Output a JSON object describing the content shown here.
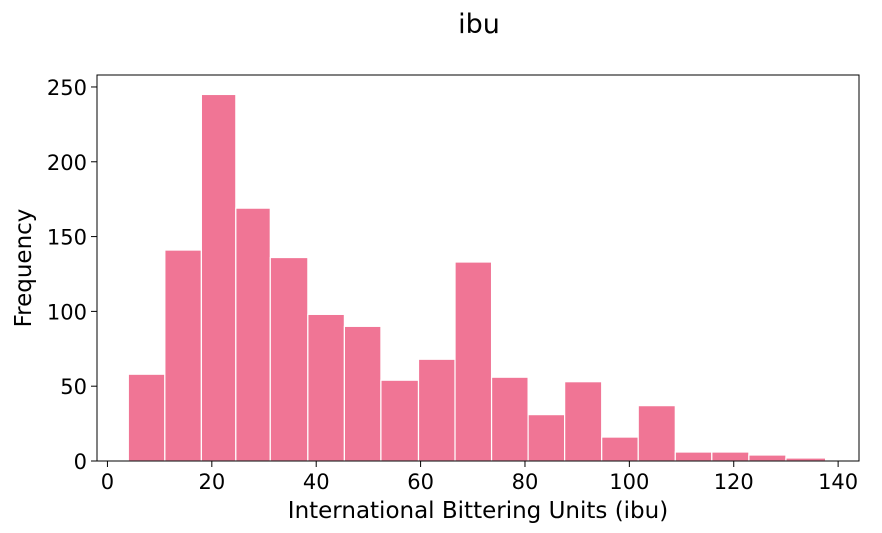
{
  "chart_data": {
    "type": "bar",
    "title": "ibu",
    "xlabel": "International Bittering Units (ibu)",
    "ylabel": "Frequency",
    "bar_color": "#f07595",
    "bin_edges": [
      4,
      11.0,
      18.0,
      24.6,
      31.2,
      38.4,
      45.4,
      52.4,
      59.6,
      66.6,
      73.6,
      80.6,
      87.6,
      94.7,
      101.7,
      108.8,
      115.8,
      122.9,
      130.0,
      137.6
    ],
    "values": [
      58,
      141,
      245,
      169,
      136,
      98,
      90,
      54,
      68,
      133,
      56,
      31,
      53,
      16,
      37,
      6,
      6,
      4,
      2
    ],
    "xlim": [
      -2,
      144
    ],
    "ylim": [
      0,
      258
    ],
    "x_ticks": [
      0,
      20,
      40,
      60,
      80,
      100,
      120,
      140
    ],
    "y_ticks": [
      0,
      50,
      100,
      150,
      200,
      250
    ],
    "grid": false
  }
}
